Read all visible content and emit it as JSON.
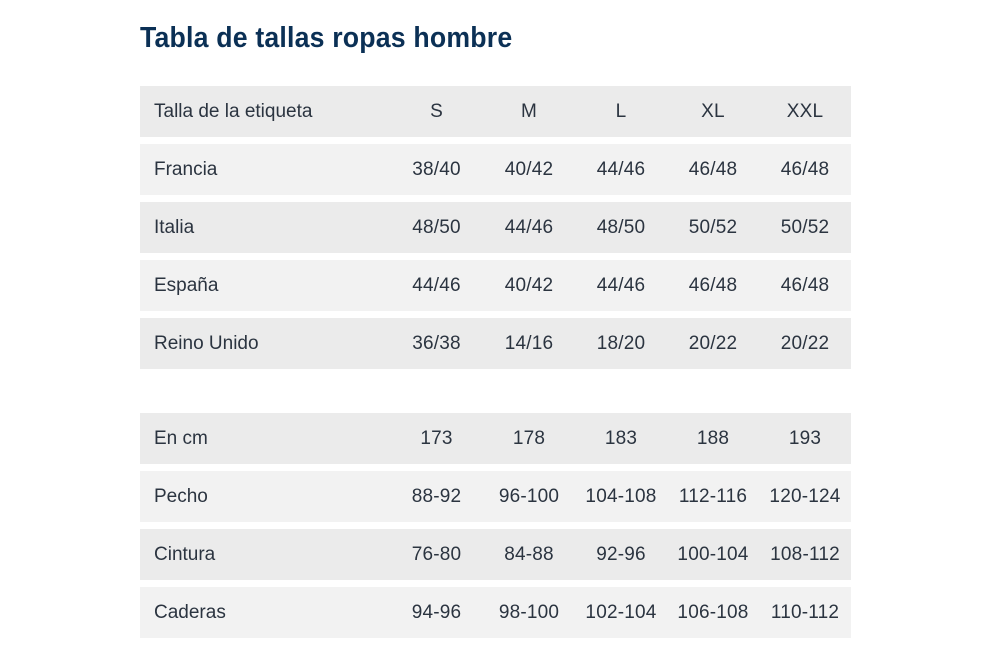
{
  "title": "Tabla de tallas ropas hombre",
  "sizes_table": {
    "header": {
      "label": "Talla de la etiqueta",
      "cols": [
        "S",
        "M",
        "L",
        "XL",
        "XXL"
      ]
    },
    "rows": [
      {
        "label": "Francia",
        "values": [
          "38/40",
          "40/42",
          "44/46",
          "46/48",
          "46/48"
        ]
      },
      {
        "label": "Italia",
        "values": [
          "48/50",
          "44/46",
          "48/50",
          "50/52",
          "50/52"
        ]
      },
      {
        "label": "España",
        "values": [
          "44/46",
          "40/42",
          "44/46",
          "46/48",
          "46/48"
        ]
      },
      {
        "label": "Reino Unido",
        "values": [
          "36/38",
          "14/16",
          "18/20",
          "20/22",
          "20/22"
        ]
      }
    ]
  },
  "cm_table": {
    "header": {
      "label": "En cm",
      "cols": [
        "173",
        "178",
        "183",
        "188",
        "193"
      ]
    },
    "rows": [
      {
        "label": "Pecho",
        "values": [
          "88-92",
          "96-100",
          "104-108",
          "112-116",
          "120-124"
        ]
      },
      {
        "label": "Cintura",
        "values": [
          "76-80",
          "84-88",
          "92-96",
          "100-104",
          "108-112"
        ]
      },
      {
        "label": "Caderas",
        "values": [
          "94-96",
          "98-100",
          "102-104",
          "106-108",
          "110-112"
        ]
      }
    ]
  }
}
